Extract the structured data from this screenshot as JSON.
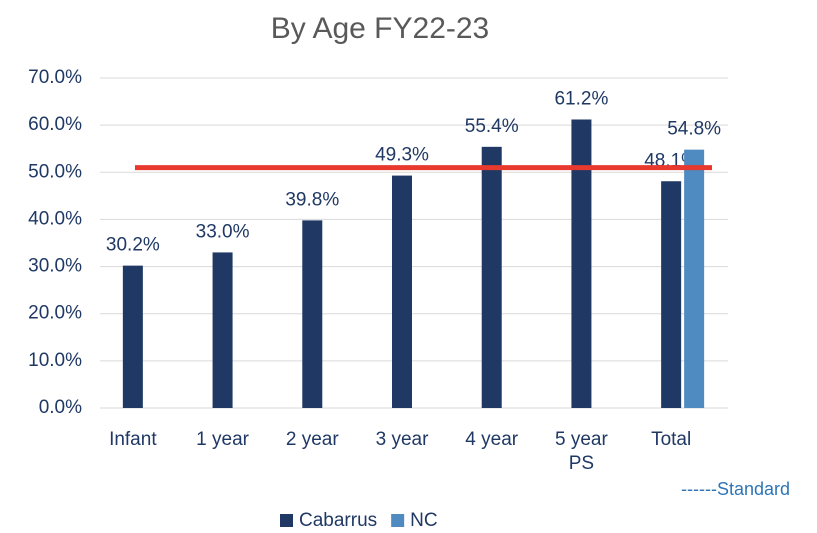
{
  "chart_data": {
    "type": "bar",
    "title": "By Age FY22-23",
    "categories": [
      "Infant",
      "1 year",
      "2 year",
      "3 year",
      "4 year",
      "5 year PS",
      "Total"
    ],
    "series": [
      {
        "name": "Cabarrus",
        "color": "#1f3864",
        "values": [
          30.2,
          33.0,
          39.8,
          49.3,
          55.4,
          61.2,
          48.1
        ],
        "value_labels": [
          "30.2%",
          "33.0%",
          "39.8%",
          "49.3%",
          "55.4%",
          "61.2%",
          "48.1%"
        ]
      },
      {
        "name": "NC",
        "color": "#4f8ac0",
        "values": [
          null,
          null,
          null,
          null,
          null,
          null,
          54.8
        ],
        "value_labels": [
          null,
          null,
          null,
          null,
          null,
          null,
          "54.8%"
        ]
      }
    ],
    "standard": {
      "name": "------Standard",
      "value": 51,
      "color": "#e8392f"
    },
    "ylim": [
      0,
      70
    ],
    "yticks": [
      {
        "value": 0,
        "label": "0.0%"
      },
      {
        "value": 10,
        "label": "10.0%"
      },
      {
        "value": 20,
        "label": "20.0%"
      },
      {
        "value": 30,
        "label": "30.0%"
      },
      {
        "value": 40,
        "label": "40.0%"
      },
      {
        "value": 50,
        "label": "50.0%"
      },
      {
        "value": 60,
        "label": "60.0%"
      },
      {
        "value": 70,
        "label": "70.0%"
      }
    ],
    "grid": true
  }
}
